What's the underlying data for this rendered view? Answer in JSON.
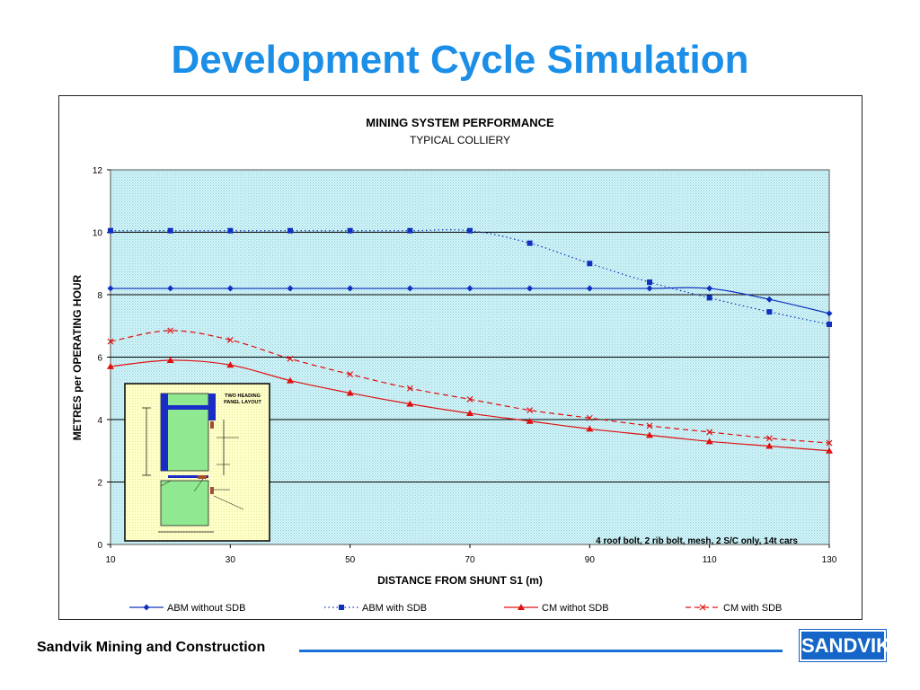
{
  "slide": {
    "title": "Development Cycle Simulation",
    "footer": "Sandvik Mining and Construction",
    "logo_text": "SANDVIK",
    "accent_color": "#1b8ee8",
    "logo_color": "#1566c8"
  },
  "chart_data": {
    "type": "line",
    "title": "MINING SYSTEM PERFORMANCE",
    "subtitle": "TYPICAL COLLIERY",
    "xlabel": "DISTANCE FROM SHUNT S1 (m)",
    "ylabel": "METRES per OPERATING HOUR",
    "xlim": [
      10,
      130
    ],
    "ylim": [
      0,
      12
    ],
    "x_ticks": [
      10,
      30,
      50,
      70,
      90,
      110,
      130
    ],
    "y_ticks": [
      0,
      2,
      4,
      6,
      8,
      10,
      12
    ],
    "grid": true,
    "legend_position": "bottom",
    "x": [
      10,
      20,
      30,
      40,
      50,
      60,
      70,
      80,
      90,
      100,
      110,
      120,
      130
    ],
    "series": [
      {
        "name": "ABM without SDB",
        "color": "#1030c0",
        "style": "solid",
        "marker": "diamond",
        "values": [
          8.2,
          8.2,
          8.2,
          8.2,
          8.2,
          8.2,
          8.2,
          8.2,
          8.2,
          8.2,
          8.2,
          7.85,
          7.4
        ]
      },
      {
        "name": "ABM with SDB",
        "color": "#1030c0",
        "style": "dotted",
        "marker": "square",
        "values": [
          10.05,
          10.05,
          10.05,
          10.05,
          10.05,
          10.05,
          10.05,
          9.65,
          9.0,
          8.4,
          7.9,
          7.45,
          7.05
        ]
      },
      {
        "name": "CM withot SDB",
        "color": "#e01010",
        "style": "solid",
        "marker": "triangle",
        "values": [
          5.7,
          5.9,
          5.75,
          5.25,
          4.85,
          4.5,
          4.2,
          3.95,
          3.7,
          3.5,
          3.3,
          3.15,
          3.0
        ]
      },
      {
        "name": "CM with SDB",
        "color": "#e01010",
        "style": "dashed",
        "marker": "x",
        "values": [
          6.5,
          6.85,
          6.55,
          5.95,
          5.45,
          5.0,
          4.65,
          4.3,
          4.05,
          3.8,
          3.6,
          3.4,
          3.25
        ]
      }
    ],
    "annotation": "4 roof bolt, 2 rib bolt, mesh, 2 S/C only, 14t cars",
    "inset": {
      "title_line1": "TWO HEADING",
      "title_line2": "PANEL LAYOUT"
    }
  }
}
